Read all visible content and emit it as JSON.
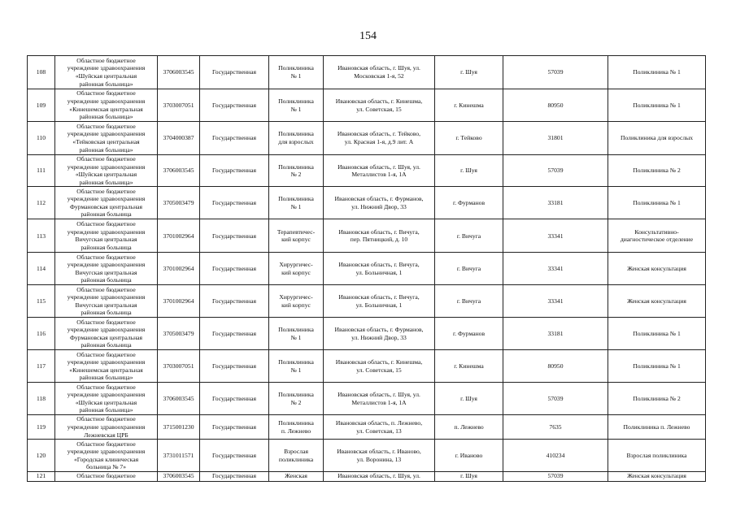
{
  "page_number": "154",
  "rows": [
    {
      "no": "108",
      "org": "Областное бюджетное\nучреждение здравоохранения\n«Шуйская центральная\nрайонная больница»",
      "inn": "3706003545",
      "type": "Государственная",
      "unit": "Поликлиника\n№ 1",
      "address": "Ивановская область, г. Шуя, ул.\nМосковская 1-я, 52",
      "city": "г. Шуя",
      "population": "57039",
      "division": "Поликлиника № 1"
    },
    {
      "no": "109",
      "org": "Областное бюджетное\nучреждение здравоохранения\n«Кинешемская центральная\nрайонная больница»",
      "inn": "3703007051",
      "type": "Государственная",
      "unit": "Поликлиника\n№ 1",
      "address": "Ивановская область, г. Кинешма,\nул. Советская, 15",
      "city": "г. Кинешма",
      "population": "80950",
      "division": "Поликлиника № 1"
    },
    {
      "no": "110",
      "org": "Областное бюджетное\nучреждение здравоохранения\n«Тейковская центральная\nрайонная больница»",
      "inn": "3704000387",
      "type": "Государственная",
      "unit": "Поликлиника\nдля взрослых",
      "address": "Ивановская область, г. Тейково,\nул. Красная 1-я, д.9 лит. А",
      "city": "г. Тейково",
      "population": "31801",
      "division": "Поликлиника для взрослых"
    },
    {
      "no": "111",
      "org": "Областное бюджетное\nучреждение здравоохранения\n«Шуйская центральная\nрайонная больница»",
      "inn": "3706003545",
      "type": "Государственная",
      "unit": "Поликлиника\n№ 2",
      "address": "Ивановская область, г. Шуя, ул.\nМеталлистов 1-я, 1А",
      "city": "г. Шуя",
      "population": "57039",
      "division": "Поликлиника № 2"
    },
    {
      "no": "112",
      "org": "Областное бюджетное\nучреждение здравоохранения\nФурмановская центральная\nрайонная больница",
      "inn": "3705003479",
      "type": "Государственная",
      "unit": "Поликлиника\n№ 1",
      "address": "Ивановская область, г. Фурманов,\nул. Нижний Двор, 33",
      "city": "г. Фурманов",
      "population": "33181",
      "division": "Поликлиника № 1"
    },
    {
      "no": "113",
      "org": "Областное бюджетное\nучреждение здравоохранения\nВичугская центральная\nрайонная больница",
      "inn": "3701002964",
      "type": "Государственная",
      "unit": "Терапевтичес-\nкий корпус",
      "address": "Ивановская область, г. Вичуга,\nпер. Пятницкий, д. 10",
      "city": "г. Вичуга",
      "population": "33341",
      "division": "Консультативно-\nдиагностическое отделение"
    },
    {
      "no": "114",
      "org": "Областное бюджетное\nучреждение здравоохранения\nВичугская центральная\nрайонная больница",
      "inn": "3701002964",
      "type": "Государственная",
      "unit": "Хирургичес-\nкий корпус",
      "address": "Ивановская область, г. Вичуга,\nул. Больничная, 1",
      "city": "г. Вичуга",
      "population": "33341",
      "division": "Женская консультация"
    },
    {
      "no": "115",
      "org": "Областное бюджетное\nучреждение здравоохранения\nВичугская центральная\nрайонная больница",
      "inn": "3701002964",
      "type": "Государственная",
      "unit": "Хирургичес-\nкий корпус",
      "address": "Ивановская область, г. Вичуга,\nул. Больничная, 1",
      "city": "г. Вичуга",
      "population": "33341",
      "division": "Женская консультация"
    },
    {
      "no": "116",
      "org": "Областное бюджетное\nучреждение здравоохранения\nФурмановская центральная\nрайонная больница",
      "inn": "3705003479",
      "type": "Государственная",
      "unit": "Поликлиника\n№ 1",
      "address": "Ивановская область, г. Фурманов,\nул. Нижний Двор, 33",
      "city": "г. Фурманов",
      "population": "33181",
      "division": "Поликлиника № 1"
    },
    {
      "no": "117",
      "org": "Областное бюджетное\nучреждение здравоохранения\n«Кинешемская центральная\nрайонная больница»",
      "inn": "3703007051",
      "type": "Государственная",
      "unit": "Поликлиника\n№ 1",
      "address": "Ивановская область, г. Кинешма,\nул. Советская, 15",
      "city": "г. Кинешма",
      "population": "80950",
      "division": "Поликлиника № 1"
    },
    {
      "no": "118",
      "org": "Областное бюджетное\nучреждение здравоохранения\n«Шуйская центральная\nрайонная больница»",
      "inn": "3706003545",
      "type": "Государственная",
      "unit": "Поликлиника\n№ 2",
      "address": "Ивановская область, г. Шуя, ул.\nМеталлистов 1-я, 1А",
      "city": "г. Шуя",
      "population": "57039",
      "division": "Поликлиника № 2"
    },
    {
      "no": "119",
      "org": "Областное бюджетное\nучреждение здравоохранения\nЛежневская ЦРБ",
      "inn": "3715001230",
      "type": "Государственная",
      "unit": "Поликлиника\nп. Лежнево",
      "address": "Ивановская область, п. Лежнево,\nул. Советская, 13",
      "city": "п. Лежнево",
      "population": "7635",
      "division": "Поликлиника п. Лежнево"
    },
    {
      "no": "120",
      "org": "Областное бюджетное\nучреждение здравоохранения\n«Городская клиническая\nбольница № 7»",
      "inn": "3731011571",
      "type": "Государственная",
      "unit": "Взрослая\nполиклиника",
      "address": "Ивановская область, г. Иваново,\nул. Воронина, 13",
      "city": "г. Иваново",
      "population": "410234",
      "division": "Взрослая поликлиника"
    },
    {
      "no": "121",
      "org": "Областное бюджетное",
      "inn": "3706003545",
      "type": "Государственная",
      "unit": "Женская",
      "address": "Ивановская область, г. Шуя, ул.",
      "city": "г. Шуя",
      "population": "57039",
      "division": "Женская консультация"
    }
  ]
}
